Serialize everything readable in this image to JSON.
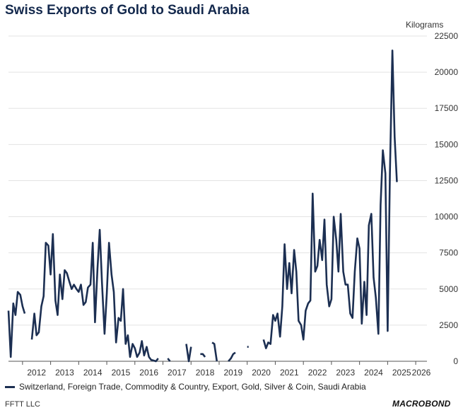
{
  "header": {
    "title": "Swiss Exports of Gold to Saudi Arabia",
    "units": "Kilograms"
  },
  "footer": {
    "source": "FFTT LLC",
    "brand": "MACROBOND"
  },
  "colors": {
    "line": "#1c2f52",
    "grid": "#e3e3e3",
    "axis": "#555555"
  },
  "chart_data": {
    "type": "line",
    "title": "Swiss Exports of Gold to Saudi Arabia",
    "ylabel": "Kilograms",
    "xlabel": "",
    "ylim": [
      0,
      22500
    ],
    "yticks": [
      0,
      2500,
      5000,
      7500,
      10000,
      12500,
      15000,
      17500,
      20000,
      22500
    ],
    "ytick_labels": [
      "0",
      "2500",
      "5000",
      "7500",
      "10000",
      "12500",
      "15000",
      "17500",
      "20000",
      "22500"
    ],
    "xlim": [
      2011.5,
      2026.4
    ],
    "xtick_labels": [
      "2012",
      "2013",
      "2014",
      "2015",
      "2016",
      "2017",
      "2018",
      "2019",
      "2020",
      "2021",
      "2022",
      "2023",
      "2024",
      "2025",
      "2026"
    ],
    "grid": true,
    "legend_position": "bottom",
    "series": [
      {
        "name": "Switzerland, Foreign Trade, Commodity & Country, Export, Gold, Silver & Coin, Saudi Arabia",
        "segments": [
          [
            [
              2011.5,
              3500
            ],
            [
              2011.58,
              300
            ],
            [
              2011.67,
              4000
            ],
            [
              2011.75,
              3200
            ],
            [
              2011.83,
              4800
            ],
            [
              2011.92,
              4600
            ],
            [
              2012.0,
              3800
            ],
            [
              2012.08,
              3300
            ]
          ],
          [
            [
              2012.33,
              1500
            ],
            [
              2012.42,
              3300
            ],
            [
              2012.5,
              1800
            ],
            [
              2012.58,
              2000
            ],
            [
              2012.67,
              3800
            ],
            [
              2012.75,
              4500
            ],
            [
              2012.83,
              8200
            ],
            [
              2012.92,
              8000
            ],
            [
              2013.0,
              6000
            ],
            [
              2013.08,
              8800
            ],
            [
              2013.17,
              4200
            ],
            [
              2013.25,
              3200
            ],
            [
              2013.33,
              6000
            ],
            [
              2013.42,
              4300
            ],
            [
              2013.5,
              6300
            ],
            [
              2013.58,
              6100
            ],
            [
              2013.67,
              5500
            ],
            [
              2013.75,
              5000
            ],
            [
              2013.83,
              5300
            ],
            [
              2013.92,
              5000
            ],
            [
              2014.0,
              4800
            ],
            [
              2014.08,
              5300
            ],
            [
              2014.17,
              3900
            ],
            [
              2014.25,
              4100
            ],
            [
              2014.33,
              5100
            ],
            [
              2014.42,
              5300
            ],
            [
              2014.5,
              8200
            ],
            [
              2014.58,
              2700
            ],
            [
              2014.67,
              6400
            ],
            [
              2014.75,
              9100
            ],
            [
              2014.83,
              5400
            ],
            [
              2014.92,
              1900
            ],
            [
              2015.0,
              4700
            ],
            [
              2015.08,
              8200
            ],
            [
              2015.17,
              6000
            ],
            [
              2015.25,
              4800
            ],
            [
              2015.33,
              1300
            ],
            [
              2015.42,
              3000
            ],
            [
              2015.5,
              2800
            ],
            [
              2015.58,
              5000
            ],
            [
              2015.67,
              1200
            ],
            [
              2015.75,
              1800
            ],
            [
              2015.83,
              300
            ],
            [
              2015.92,
              1200
            ],
            [
              2016.0,
              900
            ],
            [
              2016.08,
              300
            ],
            [
              2016.17,
              600
            ],
            [
              2016.25,
              1400
            ],
            [
              2016.33,
              400
            ],
            [
              2016.42,
              1000
            ],
            [
              2016.5,
              300
            ],
            [
              2016.58,
              100
            ],
            [
              2016.67,
              50
            ],
            [
              2016.75,
              0
            ],
            [
              2016.83,
              200
            ]
          ],
          [
            [
              2017.17,
              200
            ],
            [
              2017.25,
              0
            ]
          ],
          [
            [
              2017.83,
              1200
            ],
            [
              2017.92,
              0
            ],
            [
              2018.0,
              1000
            ]
          ],
          [
            [
              2018.33,
              500
            ],
            [
              2018.42,
              500
            ],
            [
              2018.5,
              300
            ]
          ],
          [
            [
              2018.75,
              1300
            ],
            [
              2018.83,
              1200
            ],
            [
              2018.92,
              0
            ]
          ],
          [
            [
              2019.33,
              0
            ],
            [
              2019.42,
              200
            ],
            [
              2019.5,
              500
            ],
            [
              2019.58,
              600
            ]
          ],
          [
            [
              2020.0,
              1000
            ],
            [
              2020.05,
              1000
            ]
          ],
          [
            [
              2020.58,
              1500
            ],
            [
              2020.67,
              900
            ],
            [
              2020.75,
              1300
            ],
            [
              2020.83,
              1200
            ],
            [
              2020.92,
              3200
            ],
            [
              2021.0,
              2800
            ],
            [
              2021.08,
              3300
            ],
            [
              2021.17,
              1700
            ],
            [
              2021.25,
              3800
            ],
            [
              2021.33,
              8100
            ],
            [
              2021.42,
              5000
            ],
            [
              2021.5,
              6800
            ],
            [
              2021.58,
              4700
            ],
            [
              2021.67,
              7700
            ],
            [
              2021.75,
              6200
            ],
            [
              2021.83,
              2800
            ],
            [
              2021.92,
              2500
            ],
            [
              2022.0,
              1500
            ],
            [
              2022.08,
              3500
            ],
            [
              2022.17,
              4000
            ],
            [
              2022.25,
              4200
            ],
            [
              2022.33,
              11600
            ],
            [
              2022.42,
              6200
            ],
            [
              2022.5,
              6600
            ],
            [
              2022.58,
              8400
            ],
            [
              2022.67,
              7000
            ],
            [
              2022.75,
              9800
            ],
            [
              2022.83,
              5300
            ],
            [
              2022.92,
              3800
            ],
            [
              2023.0,
              4300
            ],
            [
              2023.08,
              10000
            ],
            [
              2023.17,
              8400
            ],
            [
              2023.25,
              6200
            ],
            [
              2023.33,
              10200
            ],
            [
              2023.42,
              6200
            ],
            [
              2023.5,
              5300
            ],
            [
              2023.58,
              5300
            ],
            [
              2023.67,
              3300
            ],
            [
              2023.75,
              3000
            ],
            [
              2023.83,
              6200
            ],
            [
              2023.92,
              8500
            ],
            [
              2024.0,
              7800
            ],
            [
              2024.08,
              2600
            ],
            [
              2024.17,
              5500
            ],
            [
              2024.25,
              3200
            ],
            [
              2024.33,
              9400
            ],
            [
              2024.42,
              10200
            ],
            [
              2024.5,
              5800
            ],
            [
              2024.58,
              4400
            ],
            [
              2024.67,
              1900
            ],
            [
              2024.75,
              10800
            ],
            [
              2024.83,
              14600
            ],
            [
              2024.92,
              13000
            ],
            [
              2025.0,
              2100
            ],
            [
              2025.08,
              13000
            ],
            [
              2025.17,
              21500
            ],
            [
              2025.25,
              15500
            ],
            [
              2025.33,
              12400
            ]
          ]
        ]
      }
    ]
  }
}
